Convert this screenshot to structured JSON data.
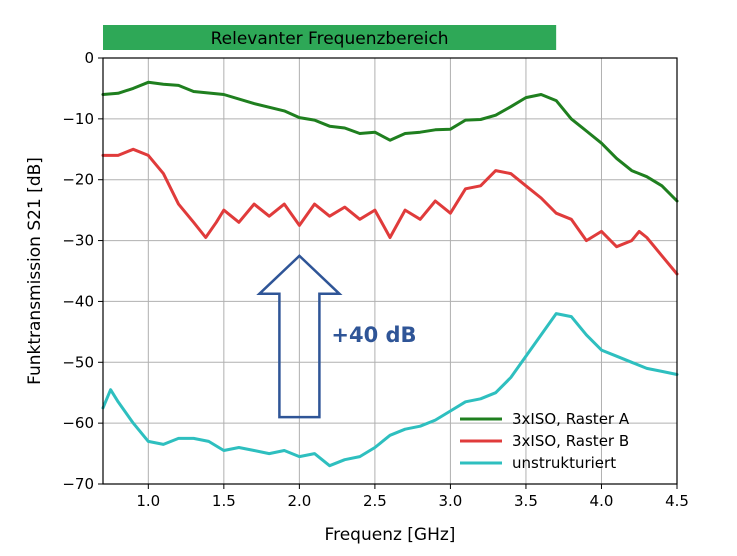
{
  "chart_data": {
    "type": "line",
    "title": "",
    "xlabel": "Frequenz [GHz]",
    "ylabel": "Funktransmission S21 [dB]",
    "xlim": [
      0.7,
      4.5
    ],
    "ylim": [
      -70,
      0
    ],
    "xticks": [
      1.0,
      1.5,
      2.0,
      2.5,
      3.0,
      3.5,
      4.0,
      4.5
    ],
    "xtick_labels": [
      "1.0",
      "1.5",
      "2.0",
      "2.5",
      "3.0",
      "3.5",
      "4.0",
      "4.5"
    ],
    "yticks": [
      0,
      -10,
      -20,
      -30,
      -40,
      -50,
      -60,
      -70
    ],
    "ytick_labels": [
      "0",
      "−10",
      "−20",
      "−30",
      "−40",
      "−50",
      "−60",
      "−70"
    ],
    "grid": true,
    "legend_position": "bottom-right",
    "series": [
      {
        "name": "3xISO, Raster A",
        "color": "#1f7f1f",
        "points": [
          [
            0.7,
            -6.0
          ],
          [
            0.8,
            -5.8
          ],
          [
            0.9,
            -5.0
          ],
          [
            1.0,
            -4.0
          ],
          [
            1.1,
            -4.3
          ],
          [
            1.2,
            -4.5
          ],
          [
            1.3,
            -5.5
          ],
          [
            1.5,
            -6.0
          ],
          [
            1.7,
            -7.5
          ],
          [
            1.9,
            -8.7
          ],
          [
            2.0,
            -9.8
          ],
          [
            2.1,
            -10.2
          ],
          [
            2.2,
            -11.2
          ],
          [
            2.3,
            -11.5
          ],
          [
            2.4,
            -12.4
          ],
          [
            2.5,
            -12.2
          ],
          [
            2.6,
            -13.5
          ],
          [
            2.7,
            -12.4
          ],
          [
            2.8,
            -12.2
          ],
          [
            2.9,
            -11.8
          ],
          [
            3.0,
            -11.7
          ],
          [
            3.1,
            -10.2
          ],
          [
            3.2,
            -10.1
          ],
          [
            3.3,
            -9.4
          ],
          [
            3.4,
            -8.0
          ],
          [
            3.5,
            -6.5
          ],
          [
            3.6,
            -6.0
          ],
          [
            3.7,
            -7.0
          ],
          [
            3.8,
            -10.0
          ],
          [
            3.9,
            -12.0
          ],
          [
            4.0,
            -14.0
          ],
          [
            4.1,
            -16.5
          ],
          [
            4.2,
            -18.5
          ],
          [
            4.3,
            -19.5
          ],
          [
            4.4,
            -21.0
          ],
          [
            4.5,
            -23.5
          ]
        ]
      },
      {
        "name": "3xISO, Raster B",
        "color": "#e03b3b",
        "points": [
          [
            0.7,
            -16.0
          ],
          [
            0.8,
            -16.0
          ],
          [
            0.9,
            -15.0
          ],
          [
            1.0,
            -16.0
          ],
          [
            1.1,
            -19.0
          ],
          [
            1.2,
            -24.0
          ],
          [
            1.3,
            -27.0
          ],
          [
            1.38,
            -29.5
          ],
          [
            1.45,
            -27.0
          ],
          [
            1.5,
            -25.0
          ],
          [
            1.6,
            -27.0
          ],
          [
            1.7,
            -24.0
          ],
          [
            1.8,
            -26.0
          ],
          [
            1.9,
            -24.0
          ],
          [
            2.0,
            -27.5
          ],
          [
            2.1,
            -24.0
          ],
          [
            2.2,
            -26.0
          ],
          [
            2.3,
            -24.5
          ],
          [
            2.4,
            -26.5
          ],
          [
            2.5,
            -25.0
          ],
          [
            2.6,
            -29.5
          ],
          [
            2.7,
            -25.0
          ],
          [
            2.8,
            -26.5
          ],
          [
            2.9,
            -23.5
          ],
          [
            3.0,
            -25.5
          ],
          [
            3.1,
            -21.5
          ],
          [
            3.2,
            -21.0
          ],
          [
            3.3,
            -18.5
          ],
          [
            3.4,
            -19.0
          ],
          [
            3.5,
            -21.0
          ],
          [
            3.6,
            -23.0
          ],
          [
            3.7,
            -25.5
          ],
          [
            3.8,
            -26.5
          ],
          [
            3.9,
            -30.0
          ],
          [
            4.0,
            -28.5
          ],
          [
            4.1,
            -31.0
          ],
          [
            4.2,
            -30.0
          ],
          [
            4.25,
            -28.5
          ],
          [
            4.3,
            -29.5
          ],
          [
            4.4,
            -32.5
          ],
          [
            4.5,
            -35.5
          ]
        ]
      },
      {
        "name": "unstrukturiert",
        "color": "#2ebfbf",
        "points": [
          [
            0.7,
            -57.5
          ],
          [
            0.75,
            -54.5
          ],
          [
            0.8,
            -56.5
          ],
          [
            0.9,
            -60.0
          ],
          [
            1.0,
            -63.0
          ],
          [
            1.1,
            -63.5
          ],
          [
            1.2,
            -62.5
          ],
          [
            1.3,
            -62.5
          ],
          [
            1.4,
            -63.0
          ],
          [
            1.5,
            -64.5
          ],
          [
            1.6,
            -64.0
          ],
          [
            1.7,
            -64.5
          ],
          [
            1.8,
            -65.0
          ],
          [
            1.9,
            -64.5
          ],
          [
            2.0,
            -65.5
          ],
          [
            2.1,
            -65.0
          ],
          [
            2.2,
            -67.0
          ],
          [
            2.3,
            -66.0
          ],
          [
            2.4,
            -65.5
          ],
          [
            2.5,
            -64.0
          ],
          [
            2.6,
            -62.0
          ],
          [
            2.7,
            -61.0
          ],
          [
            2.8,
            -60.5
          ],
          [
            2.9,
            -59.5
          ],
          [
            3.0,
            -58.0
          ],
          [
            3.1,
            -56.5
          ],
          [
            3.2,
            -56.0
          ],
          [
            3.3,
            -55.0
          ],
          [
            3.4,
            -52.5
          ],
          [
            3.5,
            -49.0
          ],
          [
            3.6,
            -45.5
          ],
          [
            3.7,
            -42.0
          ],
          [
            3.8,
            -42.5
          ],
          [
            3.9,
            -45.5
          ],
          [
            4.0,
            -48.0
          ],
          [
            4.1,
            -49.0
          ],
          [
            4.2,
            -50.0
          ],
          [
            4.3,
            -51.0
          ],
          [
            4.4,
            -51.5
          ],
          [
            4.5,
            -52.0
          ]
        ]
      }
    ],
    "banner": {
      "label": "Relevanter Frequenzbereich",
      "x_range": [
        0.7,
        3.7
      ],
      "color": "#2ea857"
    },
    "annotation": {
      "label": "+40 dB",
      "color": "#2f5597",
      "arrow_x": 2.0,
      "arrow_from": -59,
      "arrow_to": -32.5
    }
  }
}
